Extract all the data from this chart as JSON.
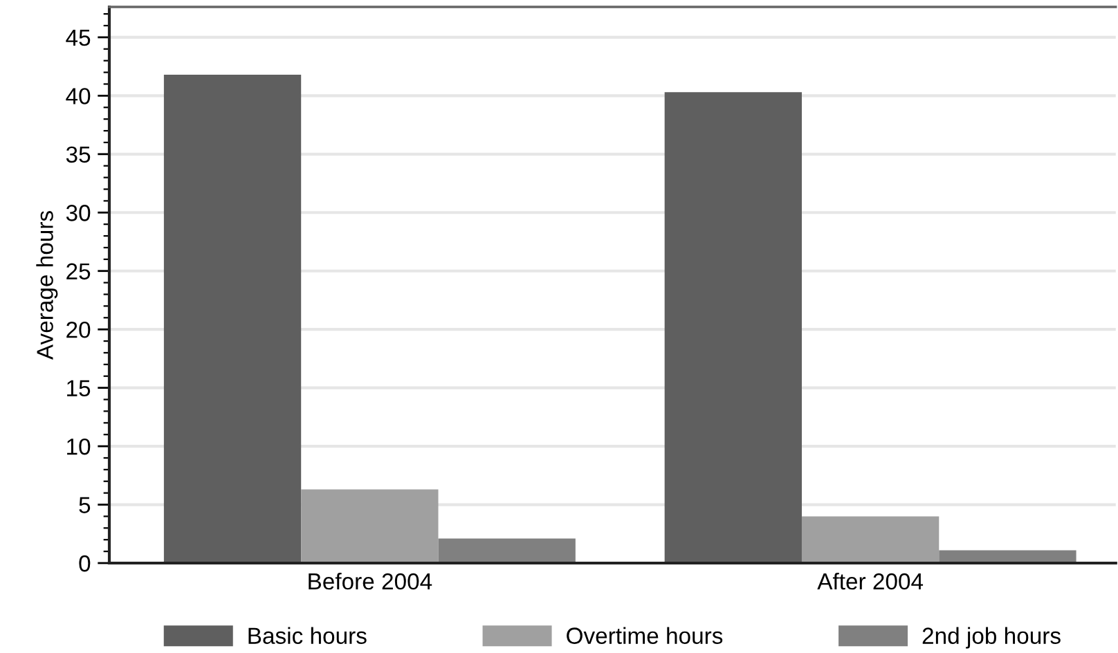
{
  "chart_data": {
    "type": "bar",
    "ylabel": "Average hours",
    "categories": [
      "Before 2004",
      "After 2004"
    ],
    "series": [
      {
        "name": "Basic hours",
        "color": "#5f5f5f",
        "values": [
          41.8,
          40.3
        ]
      },
      {
        "name": "Overtime hours",
        "color": "#a0a0a0",
        "values": [
          6.3,
          4.0
        ]
      },
      {
        "name": "2nd job hours",
        "color": "#808080",
        "values": [
          2.1,
          1.1
        ]
      }
    ],
    "ylim": [
      0,
      47.6
    ],
    "yticks": [
      0,
      {
        "value": 1,
        "label": null
      },
      {
        "value": 2,
        "label": null
      },
      {
        "value": 3,
        "label": null
      },
      {
        "value": 4,
        "label": null
      },
      5,
      {
        "value": 6,
        "label": null
      },
      {
        "value": 7,
        "label": null
      },
      {
        "value": 8,
        "label": null
      },
      {
        "value": 9,
        "label": null
      },
      10,
      {
        "value": 11,
        "label": null
      },
      {
        "value": 12,
        "label": null
      },
      {
        "value": 13,
        "label": null
      },
      {
        "value": 14,
        "label": null
      },
      15,
      {
        "value": 16,
        "label": null
      },
      {
        "value": 17,
        "label": null
      },
      {
        "value": 18,
        "label": null
      },
      {
        "value": 19,
        "label": null
      },
      20,
      {
        "value": 21,
        "label": null
      },
      {
        "value": 22,
        "label": null
      },
      {
        "value": 23,
        "label": null
      },
      {
        "value": 24,
        "label": null
      },
      25,
      {
        "value": 26,
        "label": null
      },
      {
        "value": 27,
        "label": null
      },
      {
        "value": 28,
        "label": null
      },
      {
        "value": 29,
        "label": null
      },
      30,
      {
        "value": 31,
        "label": null
      },
      {
        "value": 32,
        "label": null
      },
      {
        "value": 33,
        "label": null
      },
      {
        "value": 34,
        "label": null
      },
      35,
      {
        "value": 36,
        "label": null
      },
      {
        "value": 37,
        "label": null
      },
      {
        "value": 38,
        "label": null
      },
      {
        "value": 39,
        "label": null
      },
      40,
      {
        "value": 41,
        "label": null
      },
      {
        "value": 42,
        "label": null
      },
      {
        "value": 43,
        "label": null
      },
      {
        "value": 44,
        "label": null
      },
      45,
      {
        "value": 46,
        "label": null
      },
      {
        "value": 47,
        "label": null
      }
    ],
    "grid": "y",
    "legend": "bottom"
  }
}
